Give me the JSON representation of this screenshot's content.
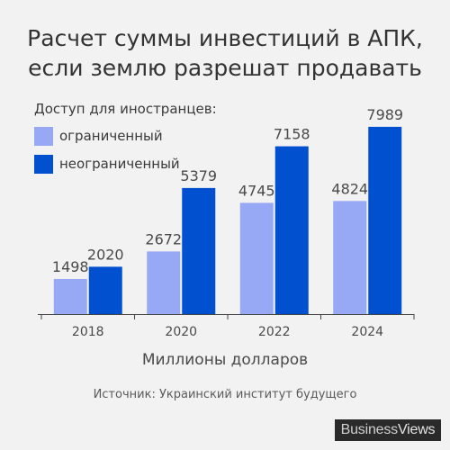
{
  "chart_data": {
    "type": "bar",
    "title_lines": [
      "Расчет суммы инвестиций в АПК,",
      "если землю разрешат продавать"
    ],
    "legend_title": "Доступ для иностранцев:",
    "categories": [
      "2018",
      "2020",
      "2022",
      "2024"
    ],
    "series": [
      {
        "name": "ограниченный",
        "color": "#97a8f5",
        "values": [
          1498,
          2672,
          4745,
          4824
        ]
      },
      {
        "name": "неограниченный",
        "color": "#0050d0",
        "values": [
          2020,
          5379,
          7158,
          7989
        ]
      }
    ],
    "xlabel": "Миллионы долларов",
    "ylim": [
      0,
      8600
    ],
    "grid": false,
    "legend_position": "top-left"
  },
  "source": "Источник: Украинский институт будущего",
  "logo": {
    "part1": "Business",
    "part2": "Views"
  }
}
